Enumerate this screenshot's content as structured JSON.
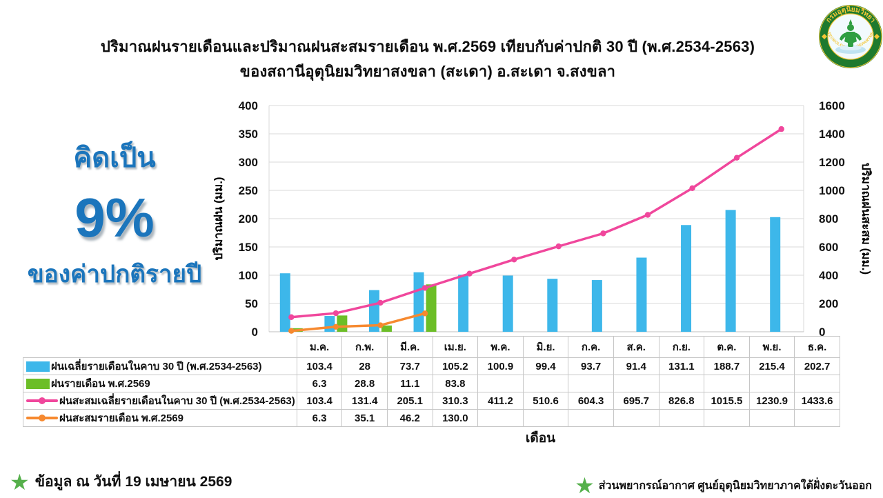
{
  "header": {
    "title_line1": "ปริมาณฝนรายเดือนและปริมาณฝนสะสมรายเดือน  พ.ศ.2569  เทียบกับค่าปกติ  30  ปี (พ.ศ.2534-2563)",
    "title_line2": "ของสถานีอุตุนิยมวิทยาสงขลา  (สะเดา) อ.สะเดา จ.สงขลา"
  },
  "logo": {
    "top_text": "กรมอุตุนิยมวิทยา",
    "bottom_text": "METEOROLOGICAL DEPARTMENT",
    "ring_green": "#1e7a2e",
    "gold": "#f5c636",
    "inner_bg": "#f2fafd",
    "figure_green": "#2f9e41"
  },
  "highlight": {
    "line1": "คิดเป็น",
    "percent": "9%",
    "line2": "ของค่าปกติรายปี",
    "color": "#1b75bc"
  },
  "chart_data": {
    "type": "bar+line combo",
    "title": "",
    "xlabel": "เดือน",
    "ylabel_left": "ปริมาณฝน (มม.)",
    "ylabel_right": "ปริมาณฝนสะสม (มม.)",
    "ylim_left": [
      0,
      400
    ],
    "ytick_step_left": 50,
    "ylim_right": [
      0,
      1600
    ],
    "ytick_step_right": 200,
    "grid": "horizontal only",
    "legend_position": "table below chart",
    "categories": [
      "ม.ค.",
      "ก.พ.",
      "มี.ค.",
      "เม.ย.",
      "พ.ค.",
      "มิ.ย.",
      "ก.ค.",
      "ส.ค.",
      "ก.ย.",
      "ต.ค.",
      "พ.ย.",
      "ธ.ค."
    ],
    "series": [
      {
        "name": "ฝนเฉลี่ยรายเดือนในคาบ 30 ปี (พ.ศ.2534-2563)",
        "type": "bar",
        "axis": "left",
        "color": "#3db7ea",
        "values": [
          103.4,
          28,
          73.7,
          105.2,
          100.9,
          99.4,
          93.7,
          91.4,
          131.1,
          188.7,
          215.4,
          202.7
        ]
      },
      {
        "name": "ฝนรายเดือน พ.ศ.2569",
        "type": "bar",
        "axis": "left",
        "color": "#6cbe27",
        "values": [
          6.3,
          28.8,
          11.1,
          83.8
        ]
      },
      {
        "name": "ฝนสะสมเฉลี่ยรายเดือนในคาบ 30 ปี (พ.ศ.2534-2563)",
        "type": "line",
        "axis": "right",
        "color": "#f0479c",
        "values": [
          103.4,
          131.4,
          205.1,
          310.3,
          411.2,
          510.6,
          604.3,
          695.7,
          826.8,
          1015.5,
          1230.9,
          1433.6
        ]
      },
      {
        "name": "ฝนสะสมรายเดือน พ.ศ.2569",
        "type": "line",
        "axis": "right",
        "color": "#f6892f",
        "values": [
          6.3,
          35.1,
          46.2,
          130.0
        ]
      }
    ]
  },
  "table": {
    "rows": [
      {
        "label": "ฝนเฉลี่ยรายเดือนในคาบ 30 ปี (พ.ศ.2534-2563)",
        "swatch": "bar",
        "color": "#3db7ea",
        "values": [
          "103.4",
          "28",
          "73.7",
          "105.2",
          "100.9",
          "99.4",
          "93.7",
          "91.4",
          "131.1",
          "188.7",
          "215.4",
          "202.7"
        ]
      },
      {
        "label": "ฝนรายเดือน พ.ศ.2569",
        "swatch": "bar",
        "color": "#6cbe27",
        "values": [
          "6.3",
          "28.8",
          "11.1",
          "83.8",
          "",
          "",
          "",
          "",
          "",
          "",
          "",
          ""
        ]
      },
      {
        "label": "ฝนสะสมเฉลี่ยรายเดือนในคาบ 30 ปี (พ.ศ.2534-2563)",
        "swatch": "line",
        "color": "#f0479c",
        "values": [
          "103.4",
          "131.4",
          "205.1",
          "310.3",
          "411.2",
          "510.6",
          "604.3",
          "695.7",
          "826.8",
          "1015.5",
          "1230.9",
          "1433.6"
        ]
      },
      {
        "label": "ฝนสะสมรายเดือน พ.ศ.2569",
        "swatch": "line",
        "color": "#f6892f",
        "values": [
          "6.3",
          "35.1",
          "46.2",
          "130.0",
          "",
          "",
          "",
          "",
          "",
          "",
          "",
          ""
        ]
      }
    ]
  },
  "footer": {
    "left_text": "ข้อมูล ณ วันที่ 19 เมษายน 2569",
    "right_text": "ส่วนพยากรณ์อากาศ ศูนย์อุตุนิยมวิทยาภาคใต้ฝั่งตะวันออก",
    "star_color": "#55b04b"
  }
}
